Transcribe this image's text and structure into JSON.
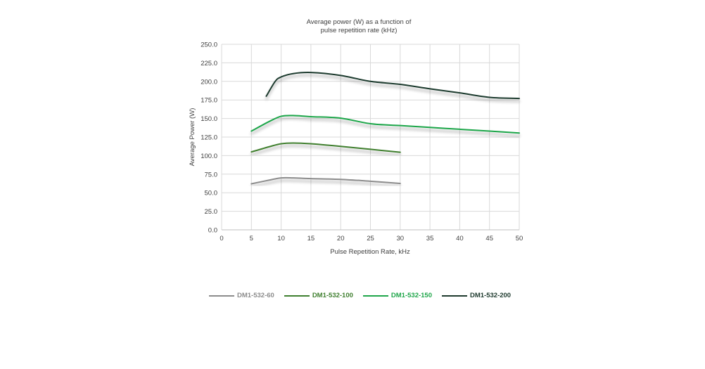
{
  "chart_data": {
    "type": "line",
    "title_line1": "Average power (W) as a function of",
    "title_line2": "pulse repetition rate (kHz)",
    "xlabel": "Pulse Repetition Rate, kHz",
    "ylabel": "Average Power (W)",
    "xlim": [
      0,
      50
    ],
    "ylim": [
      0,
      250
    ],
    "x_ticks": [
      "0",
      "5",
      "10",
      "15",
      "20",
      "25",
      "30",
      "35",
      "40",
      "45",
      "50"
    ],
    "y_ticks": [
      "0.0",
      "25.0",
      "50.0",
      "75.0",
      "100.0",
      "125.0",
      "150.0",
      "175.0",
      "200.0",
      "225.0",
      "250.0"
    ],
    "grid": true,
    "legend_position": "bottom",
    "series": [
      {
        "name": "DM1-532-60",
        "color": "#8c8c8c",
        "points": [
          [
            5,
            62
          ],
          [
            8,
            67
          ],
          [
            10,
            70
          ],
          [
            12,
            70
          ],
          [
            15,
            69
          ],
          [
            20,
            68
          ],
          [
            25,
            65.5
          ],
          [
            30,
            62.5
          ]
        ]
      },
      {
        "name": "DM1-532-100",
        "color": "#3f7f2f",
        "points": [
          [
            5,
            105
          ],
          [
            8,
            112
          ],
          [
            10,
            116
          ],
          [
            12,
            117
          ],
          [
            15,
            116
          ],
          [
            20,
            112.5
          ],
          [
            25,
            108.5
          ],
          [
            30,
            104.5
          ]
        ]
      },
      {
        "name": "DM1-532-150",
        "color": "#1fa64a",
        "points": [
          [
            5,
            133
          ],
          [
            8,
            146
          ],
          [
            10,
            153
          ],
          [
            12,
            154
          ],
          [
            15,
            152.5
          ],
          [
            20,
            150.5
          ],
          [
            25,
            143
          ],
          [
            30,
            140.5
          ],
          [
            35,
            138
          ],
          [
            40,
            135.5
          ],
          [
            45,
            133
          ],
          [
            50,
            130.5
          ]
        ]
      },
      {
        "name": "DM1-532-200",
        "color": "#1e3a2e",
        "points": [
          [
            7.5,
            180
          ],
          [
            9,
            200
          ],
          [
            10,
            206
          ],
          [
            12,
            210.5
          ],
          [
            15,
            212
          ],
          [
            20,
            208
          ],
          [
            25,
            200
          ],
          [
            30,
            196
          ],
          [
            35,
            190
          ],
          [
            40,
            184.5
          ],
          [
            45,
            178.5
          ],
          [
            50,
            177
          ]
        ]
      }
    ]
  }
}
